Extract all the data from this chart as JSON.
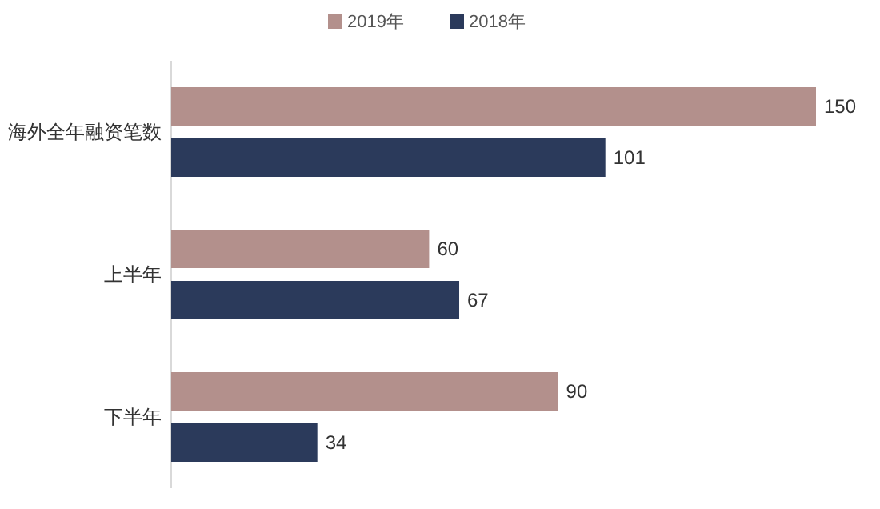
{
  "chart_data": {
    "type": "bar",
    "orientation": "horizontal",
    "categories": [
      "海外全年融资笔数",
      "上半年",
      "下半年"
    ],
    "series": [
      {
        "name": "2019年",
        "color": "#b3908c",
        "values": [
          150,
          60,
          90
        ]
      },
      {
        "name": "2018年",
        "color": "#2b3a5b",
        "values": [
          101,
          67,
          34
        ]
      }
    ],
    "data_labels": true,
    "legend": "top"
  }
}
